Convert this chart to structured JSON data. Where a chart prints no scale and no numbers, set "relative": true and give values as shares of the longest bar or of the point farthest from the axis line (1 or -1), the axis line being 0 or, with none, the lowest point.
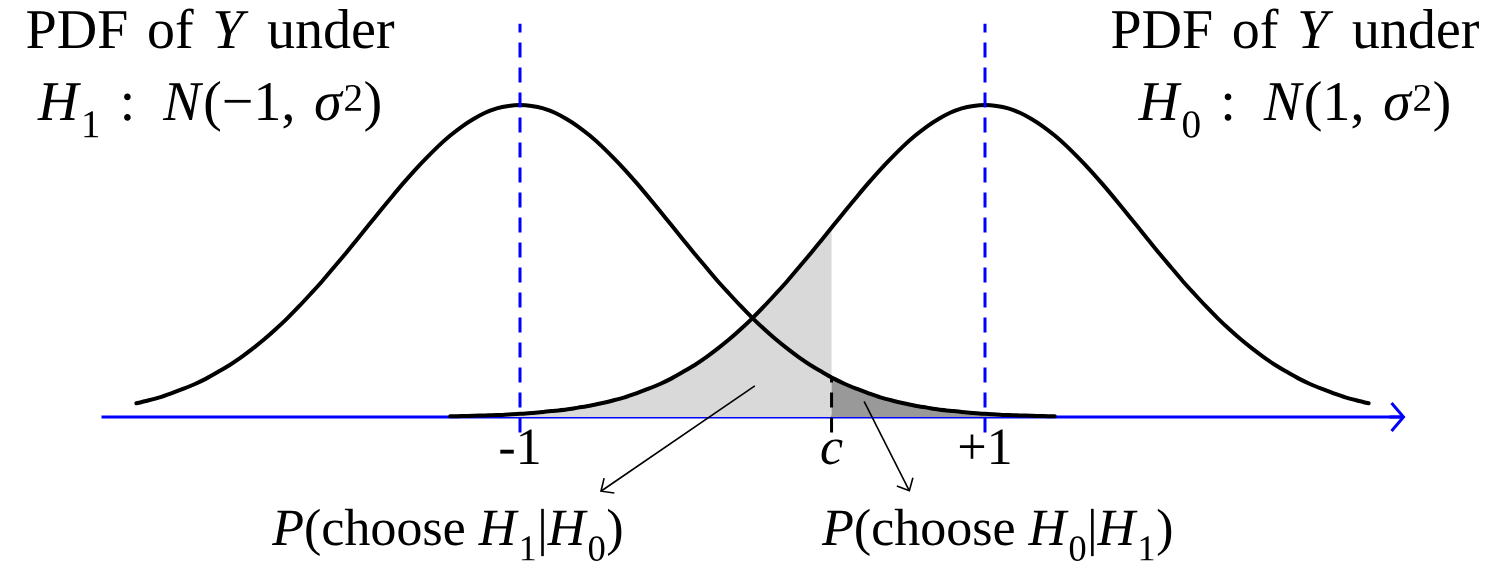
{
  "chart_data": {
    "type": "line",
    "relative": true,
    "xlim": [
      -2.8,
      2.8
    ],
    "xticks": [
      -1,
      {
        "value": 0.34,
        "label": "*c*"
      },
      {
        "value": 1,
        "label": "+1"
      }
    ],
    "series": [
      {
        "type": "area",
        "color": "#d9d9d9",
        "x": [
          -1.3,
          -1.25,
          -1.2,
          -1.15,
          -1.1,
          -1.05,
          -1.0,
          -0.95,
          -0.9,
          -0.85,
          -0.8,
          -0.75,
          -0.7,
          -0.65,
          -0.6,
          -0.55,
          -0.5,
          -0.45,
          -0.4,
          -0.35,
          -0.3,
          -0.25,
          -0.2,
          -0.15,
          -0.1,
          -0.05,
          0.0,
          0.05,
          0.1,
          0.15,
          0.2,
          0.25,
          0.3,
          0.34
        ],
        "values": [
          0.002,
          0.003,
          0.004,
          0.005,
          0.006,
          0.008,
          0.01,
          0.013,
          0.016,
          0.02,
          0.024,
          0.03,
          0.036,
          0.044,
          0.053,
          0.063,
          0.076,
          0.09,
          0.105,
          0.123,
          0.144,
          0.166,
          0.191,
          0.219,
          0.249,
          0.282,
          0.317,
          0.355,
          0.395,
          0.436,
          0.48,
          0.524,
          0.57,
          0.607
        ]
      },
      {
        "type": "area",
        "color": "#999999",
        "x": [
          0.34,
          0.4,
          0.45,
          0.5,
          0.55,
          0.6,
          0.65,
          0.7,
          0.75,
          0.8,
          0.85,
          0.9,
          0.95,
          1.0,
          1.05,
          1.1,
          1.15,
          1.2,
          1.25,
          1.3
        ],
        "values": [
          0.127,
          0.105,
          0.09,
          0.076,
          0.063,
          0.053,
          0.044,
          0.036,
          0.03,
          0.024,
          0.02,
          0.016,
          0.013,
          0.01,
          0.008,
          0.006,
          0.005,
          0.004,
          0.003,
          0.002
        ]
      },
      {
        "name": "PDF of *Y* under *H*$_{1}$ : *N*(−1, *σ*$^{2}$)",
        "color": "#000000",
        "x": [
          -2.65,
          -2.6,
          -2.55,
          -2.5,
          -2.45,
          -2.4,
          -2.35,
          -2.3,
          -2.25,
          -2.2,
          -2.15,
          -2.1,
          -2.05,
          -2.0,
          -1.95,
          -1.9,
          -1.85,
          -1.8,
          -1.75,
          -1.7,
          -1.65,
          -1.6,
          -1.55,
          -1.5,
          -1.45,
          -1.4,
          -1.35,
          -1.3,
          -1.25,
          -1.2,
          -1.15,
          -1.1,
          -1.05,
          -1.0,
          -0.95,
          -0.9,
          -0.85,
          -0.8,
          -0.75,
          -0.7,
          -0.65,
          -0.6,
          -0.55,
          -0.5,
          -0.45,
          -0.4,
          -0.35,
          -0.3,
          -0.25,
          -0.2,
          -0.15,
          -0.1,
          -0.05,
          0.0,
          0.05,
          0.1,
          0.15,
          0.2,
          0.25,
          0.3,
          0.35,
          0.4,
          0.45,
          0.5,
          0.55,
          0.6,
          0.65,
          0.7,
          0.75,
          0.8,
          0.85,
          0.9,
          0.95,
          1.0,
          1.05,
          1.1,
          1.15,
          1.2,
          1.25,
          1.3
        ],
        "values": [
          0.044,
          0.053,
          0.063,
          0.076,
          0.09,
          0.105,
          0.123,
          0.144,
          0.166,
          0.191,
          0.219,
          0.249,
          0.282,
          0.317,
          0.355,
          0.395,
          0.436,
          0.48,
          0.524,
          0.57,
          0.616,
          0.662,
          0.707,
          0.751,
          0.793,
          0.832,
          0.869,
          0.902,
          0.931,
          0.955,
          0.975,
          0.989,
          0.997,
          1,
          0.997,
          0.989,
          0.975,
          0.955,
          0.931,
          0.902,
          0.869,
          0.832,
          0.793,
          0.751,
          0.707,
          0.662,
          0.616,
          0.57,
          0.524,
          0.48,
          0.436,
          0.395,
          0.355,
          0.317,
          0.282,
          0.249,
          0.219,
          0.191,
          0.166,
          0.144,
          0.123,
          0.105,
          0.09,
          0.076,
          0.063,
          0.053,
          0.044,
          0.036,
          0.03,
          0.024,
          0.02,
          0.016,
          0.013,
          0.01,
          0.008,
          0.006,
          0.005,
          0.004,
          0.003,
          0.002
        ]
      },
      {
        "name": "PDF of *Y* under *H*$_{0}$ : *N*(1, *σ*$^{2}$)",
        "color": "#000000",
        "x": [
          -1.3,
          -1.25,
          -1.2,
          -1.15,
          -1.1,
          -1.05,
          -1.0,
          -0.95,
          -0.9,
          -0.85,
          -0.8,
          -0.75,
          -0.7,
          -0.65,
          -0.6,
          -0.55,
          -0.5,
          -0.45,
          -0.4,
          -0.35,
          -0.3,
          -0.25,
          -0.2,
          -0.15,
          -0.1,
          -0.05,
          0.0,
          0.05,
          0.1,
          0.15,
          0.2,
          0.25,
          0.3,
          0.35,
          0.4,
          0.45,
          0.5,
          0.55,
          0.6,
          0.65,
          0.7,
          0.75,
          0.8,
          0.85,
          0.9,
          0.95,
          1.0,
          1.05,
          1.1,
          1.15,
          1.2,
          1.25,
          1.3,
          1.35,
          1.4,
          1.45,
          1.5,
          1.55,
          1.6,
          1.65,
          1.7,
          1.75,
          1.8,
          1.85,
          1.9,
          1.95,
          2.0,
          2.05,
          2.1,
          2.15,
          2.2,
          2.25,
          2.3,
          2.35,
          2.4,
          2.45,
          2.5,
          2.55,
          2.6,
          2.65
        ],
        "values": [
          0.002,
          0.003,
          0.004,
          0.005,
          0.006,
          0.008,
          0.01,
          0.013,
          0.016,
          0.02,
          0.024,
          0.03,
          0.036,
          0.044,
          0.053,
          0.063,
          0.076,
          0.09,
          0.105,
          0.123,
          0.144,
          0.166,
          0.191,
          0.219,
          0.249,
          0.282,
          0.317,
          0.355,
          0.395,
          0.436,
          0.48,
          0.524,
          0.57,
          0.616,
          0.662,
          0.707,
          0.751,
          0.793,
          0.832,
          0.869,
          0.902,
          0.931,
          0.955,
          0.975,
          0.989,
          0.997,
          1,
          0.997,
          0.989,
          0.975,
          0.955,
          0.931,
          0.902,
          0.869,
          0.832,
          0.793,
          0.751,
          0.707,
          0.662,
          0.616,
          0.57,
          0.524,
          0.48,
          0.436,
          0.395,
          0.355,
          0.317,
          0.282,
          0.249,
          0.219,
          0.191,
          0.166,
          0.144,
          0.123,
          0.105,
          0.09,
          0.076,
          0.063,
          0.053,
          0.044
        ]
      }
    ],
    "ref_lines": [
      {
        "axis": "x",
        "value": -1,
        "color": "#0000ff",
        "line_style": "dashed"
      },
      {
        "axis": "x",
        "value": 1,
        "color": "#0000ff",
        "line_style": "dashed"
      },
      {
        "axis": "x",
        "value": 0.34,
        "color": "#000000",
        "line_style": "dashed"
      }
    ],
    "annotations": [
      "*P*(choose *H*$_{1}$|*H*$_{0}$)",
      "*P*(choose *H*$_{0}$|*H*$_{1}$)"
    ]
  }
}
